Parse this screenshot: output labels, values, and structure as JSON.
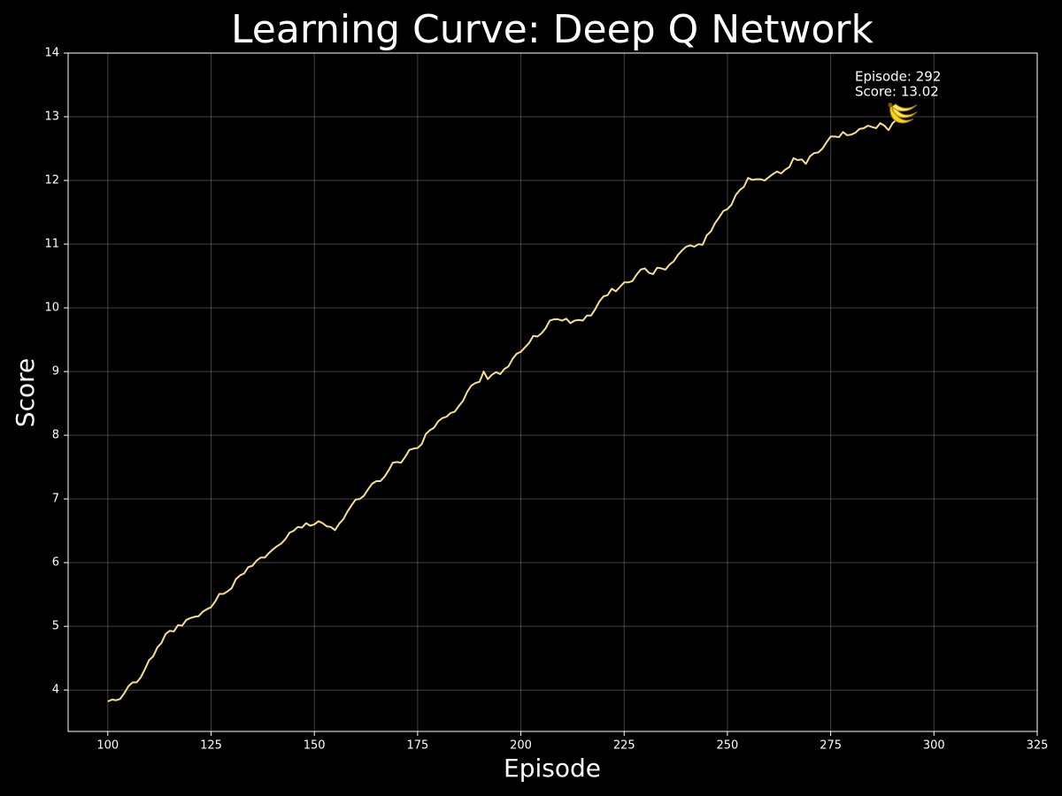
{
  "chart_data": {
    "type": "line",
    "title": "Learning Curve: Deep Q Network",
    "x_label": "Episode",
    "y_label": "Score",
    "x": [
      100,
      101,
      102,
      103,
      104,
      105,
      106,
      107,
      108,
      109,
      110,
      111,
      112,
      113,
      114,
      115,
      116,
      117,
      118,
      119,
      120,
      121,
      122,
      123,
      124,
      125,
      126,
      127,
      128,
      129,
      130,
      131,
      132,
      133,
      134,
      135,
      136,
      137,
      138,
      139,
      140,
      141,
      142,
      143,
      144,
      145,
      146,
      147,
      148,
      149,
      150,
      151,
      152,
      153,
      154,
      155,
      156,
      157,
      158,
      159,
      160,
      161,
      162,
      163,
      164,
      165,
      166,
      167,
      168,
      169,
      170,
      171,
      172,
      173,
      174,
      175,
      176,
      177,
      178,
      179,
      180,
      181,
      182,
      183,
      184,
      185,
      186,
      187,
      188,
      189,
      190,
      191,
      192,
      193,
      194,
      195,
      196,
      197,
      198,
      199,
      200,
      201,
      202,
      203,
      204,
      205,
      206,
      207,
      208,
      209,
      210,
      211,
      212,
      213,
      214,
      215,
      216,
      217,
      218,
      219,
      220,
      221,
      222,
      223,
      224,
      225,
      226,
      227,
      228,
      229,
      230,
      231,
      232,
      233,
      234,
      235,
      236,
      237,
      238,
      239,
      240,
      241,
      242,
      243,
      244,
      245,
      246,
      247,
      248,
      249,
      250,
      251,
      252,
      253,
      254,
      255,
      256,
      257,
      258,
      259,
      260,
      261,
      262,
      263,
      264,
      265,
      266,
      267,
      268,
      269,
      270,
      271,
      272,
      273,
      274,
      275,
      276,
      277,
      278,
      279,
      280,
      281,
      282,
      283,
      284,
      285,
      286,
      287,
      288,
      289,
      290,
      291,
      292
    ],
    "series": [
      {
        "name": "Score",
        "color": "#f7e08c",
        "values": [
          3.82,
          3.85,
          3.84,
          3.86,
          3.95,
          4.06,
          4.12,
          4.12,
          4.2,
          4.33,
          4.47,
          4.53,
          4.67,
          4.74,
          4.88,
          4.93,
          4.92,
          5.02,
          5.01,
          5.1,
          5.13,
          5.15,
          5.16,
          5.23,
          5.27,
          5.3,
          5.39,
          5.51,
          5.51,
          5.55,
          5.6,
          5.74,
          5.8,
          5.83,
          5.93,
          5.95,
          6.03,
          6.08,
          6.08,
          6.15,
          6.21,
          6.26,
          6.3,
          6.37,
          6.47,
          6.5,
          6.56,
          6.55,
          6.62,
          6.58,
          6.6,
          6.65,
          6.62,
          6.57,
          6.56,
          6.51,
          6.61,
          6.68,
          6.8,
          6.9,
          6.99,
          7.0,
          7.05,
          7.15,
          7.24,
          7.28,
          7.28,
          7.35,
          7.45,
          7.57,
          7.58,
          7.57,
          7.66,
          7.77,
          7.79,
          7.8,
          7.86,
          8.02,
          8.08,
          8.12,
          8.22,
          8.27,
          8.29,
          8.35,
          8.37,
          8.46,
          8.54,
          8.68,
          8.78,
          8.82,
          8.84,
          9.0,
          8.88,
          8.95,
          8.99,
          8.96,
          9.04,
          9.08,
          9.2,
          9.28,
          9.31,
          9.38,
          9.45,
          9.56,
          9.55,
          9.6,
          9.68,
          9.8,
          9.82,
          9.82,
          9.8,
          9.83,
          9.76,
          9.8,
          9.81,
          9.8,
          9.88,
          9.88,
          9.98,
          10.1,
          10.18,
          10.2,
          10.3,
          10.26,
          10.33,
          10.4,
          10.4,
          10.42,
          10.52,
          10.6,
          10.62,
          10.55,
          10.53,
          10.63,
          10.62,
          10.6,
          10.68,
          10.73,
          10.83,
          10.9,
          10.96,
          10.98,
          10.96,
          11.0,
          10.99,
          11.14,
          11.2,
          11.33,
          11.42,
          11.52,
          11.55,
          11.62,
          11.77,
          11.85,
          11.9,
          12.04,
          12.01,
          12.02,
          12.02,
          12.0,
          12.05,
          12.1,
          12.14,
          12.11,
          12.17,
          12.21,
          12.35,
          12.32,
          12.33,
          12.26,
          12.38,
          12.43,
          12.44,
          12.5,
          12.6,
          12.69,
          12.69,
          12.68,
          12.76,
          12.71,
          12.72,
          12.75,
          12.81,
          12.82,
          12.86,
          12.84,
          12.82,
          12.9,
          12.86,
          12.79,
          12.9,
          12.96,
          13.02
        ]
      }
    ],
    "annotation": [
      "Episode: 292",
      "Score: 13.02"
    ],
    "xlim": [
      90.4,
      325
    ],
    "xticks": [
      100,
      125,
      150,
      175,
      200,
      225,
      250,
      275,
      300,
      325
    ],
    "ylim": [
      3.35,
      14
    ],
    "yticks": [
      4,
      5,
      6,
      7,
      8,
      9,
      10,
      11,
      12,
      13,
      14
    ],
    "grid": true
  }
}
